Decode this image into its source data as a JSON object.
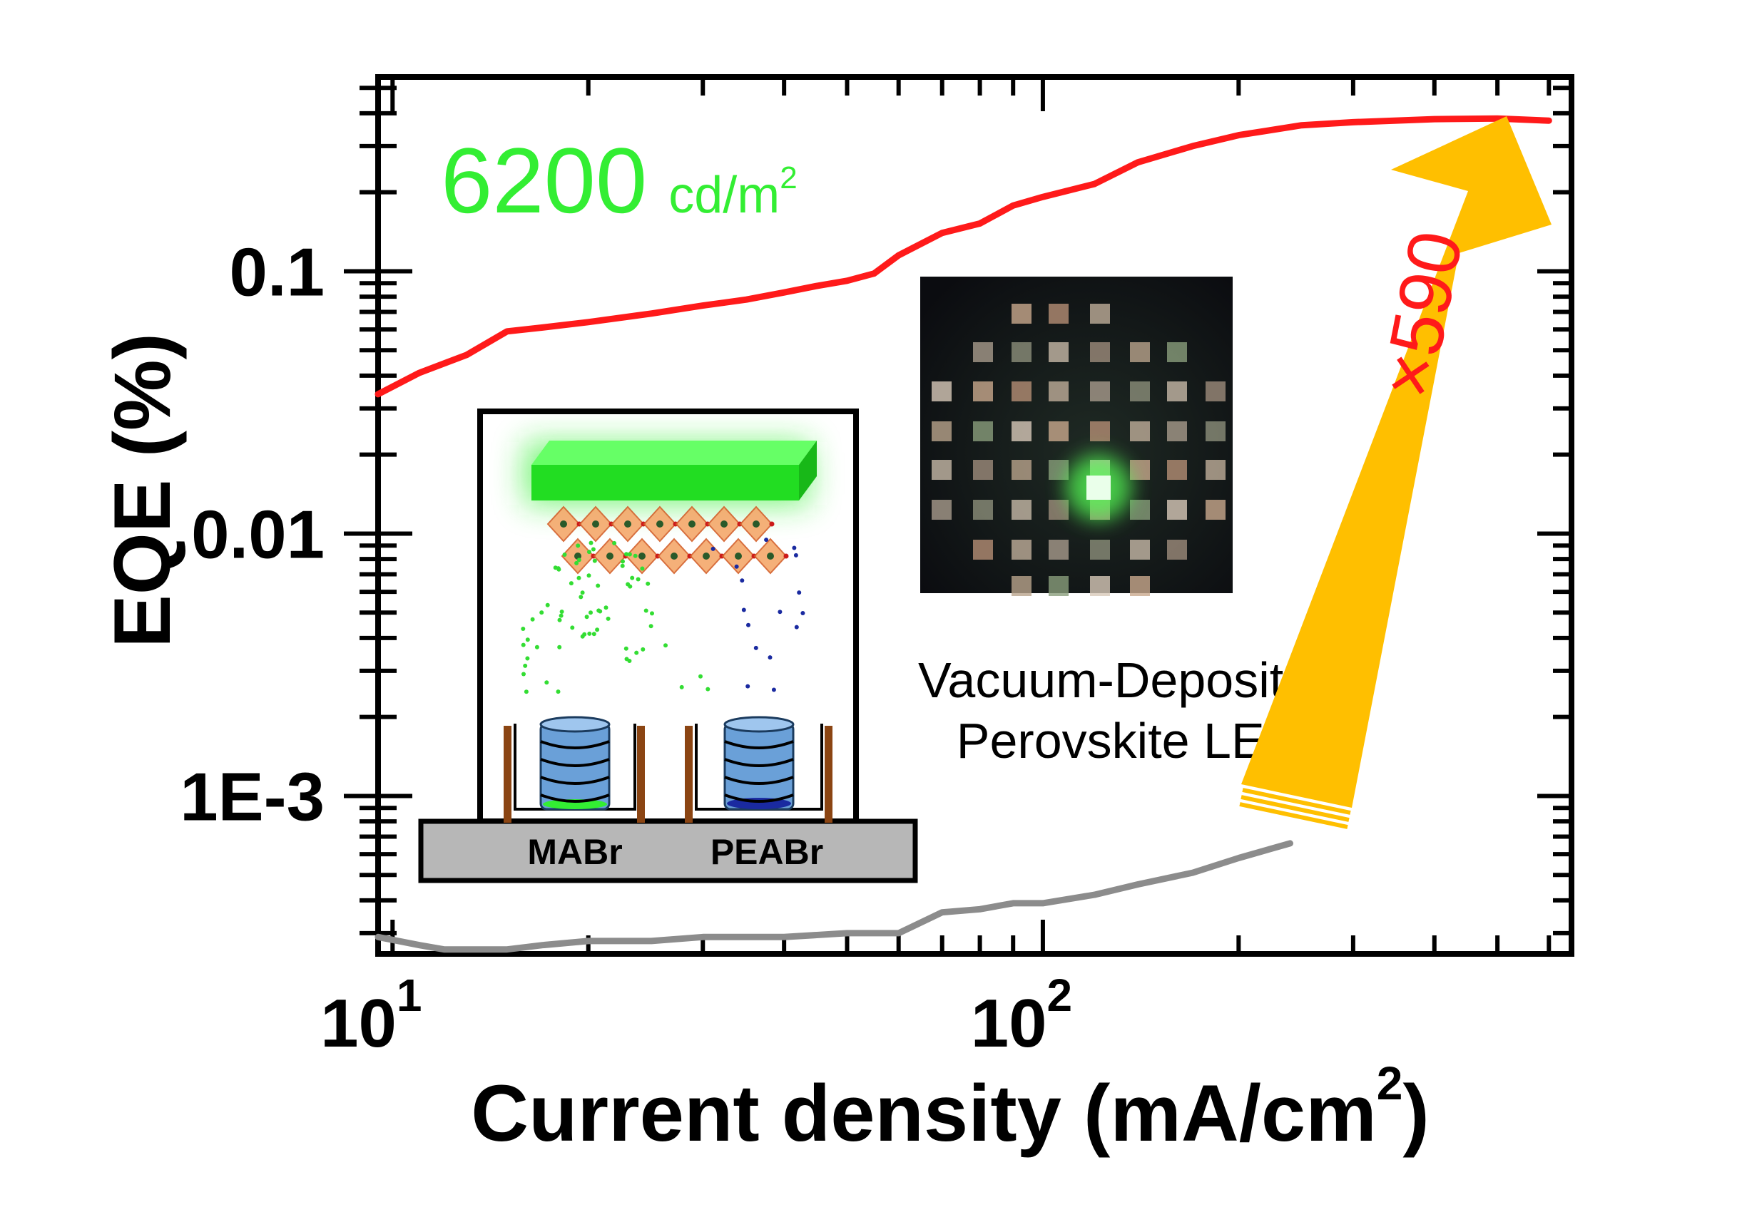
{
  "chart_data": {
    "type": "line",
    "title": "",
    "xlabel": "Current density (mA/cm",
    "xlabel_sup": "2",
    "xlabel_close": ")",
    "ylabel": "EQE (%)",
    "xscale": "log",
    "yscale": "log",
    "xlim": [
      9.5,
      650
    ],
    "ylim": [
      0.00025,
      0.55
    ],
    "x_tick_labels": [
      {
        "x": 10,
        "base": "10",
        "exp": "1"
      },
      {
        "x": 100,
        "base": "10",
        "exp": "2"
      }
    ],
    "y_tick_labels": [
      {
        "y": 0.1,
        "label": "0.1"
      },
      {
        "y": 0.01,
        "label": "0.01"
      },
      {
        "y": 0.001,
        "label": "1E-3"
      }
    ],
    "grid": false,
    "series": [
      {
        "color": "#ff1a1a",
        "x": [
          9.5,
          11,
          13,
          15,
          17,
          20,
          25,
          30,
          35,
          40,
          45,
          50,
          55,
          60,
          70,
          80,
          90,
          100,
          120,
          140,
          170,
          200,
          250,
          300,
          400,
          500,
          600
        ],
        "y": [
          0.034,
          0.041,
          0.048,
          0.059,
          0.061,
          0.064,
          0.069,
          0.074,
          0.078,
          0.083,
          0.088,
          0.092,
          0.098,
          0.115,
          0.14,
          0.152,
          0.178,
          0.192,
          0.215,
          0.26,
          0.3,
          0.33,
          0.36,
          0.37,
          0.38,
          0.382,
          0.375
        ]
      },
      {
        "color": "#8c8c8c",
        "x": [
          9.5,
          11,
          12,
          13,
          15,
          17,
          20,
          25,
          30,
          35,
          40,
          50,
          60,
          70,
          80,
          90,
          100,
          120,
          140,
          170,
          200,
          240
        ],
        "y": [
          0.00029,
          0.00027,
          0.00026,
          0.00026,
          0.00026,
          0.00027,
          0.00028,
          0.00028,
          0.00029,
          0.00029,
          0.00029,
          0.0003,
          0.0003,
          0.00036,
          0.00037,
          0.00039,
          0.00039,
          0.00042,
          0.00046,
          0.00051,
          0.00058,
          0.00066
        ]
      }
    ],
    "annotations": {
      "luminance_value": "6200",
      "luminance_unit": "cd/m",
      "luminance_sup": "2",
      "enhancement": "×590",
      "device_title_line1": "Vacuum-Deposited",
      "device_title_line2": "Perovskite LED",
      "source_left": "MABr",
      "source_right": "PEABr"
    },
    "colors": {
      "luminance_text": "#33ee33",
      "enhancement_text": "#ff1a1a",
      "arrow": "#ffbf00"
    }
  }
}
